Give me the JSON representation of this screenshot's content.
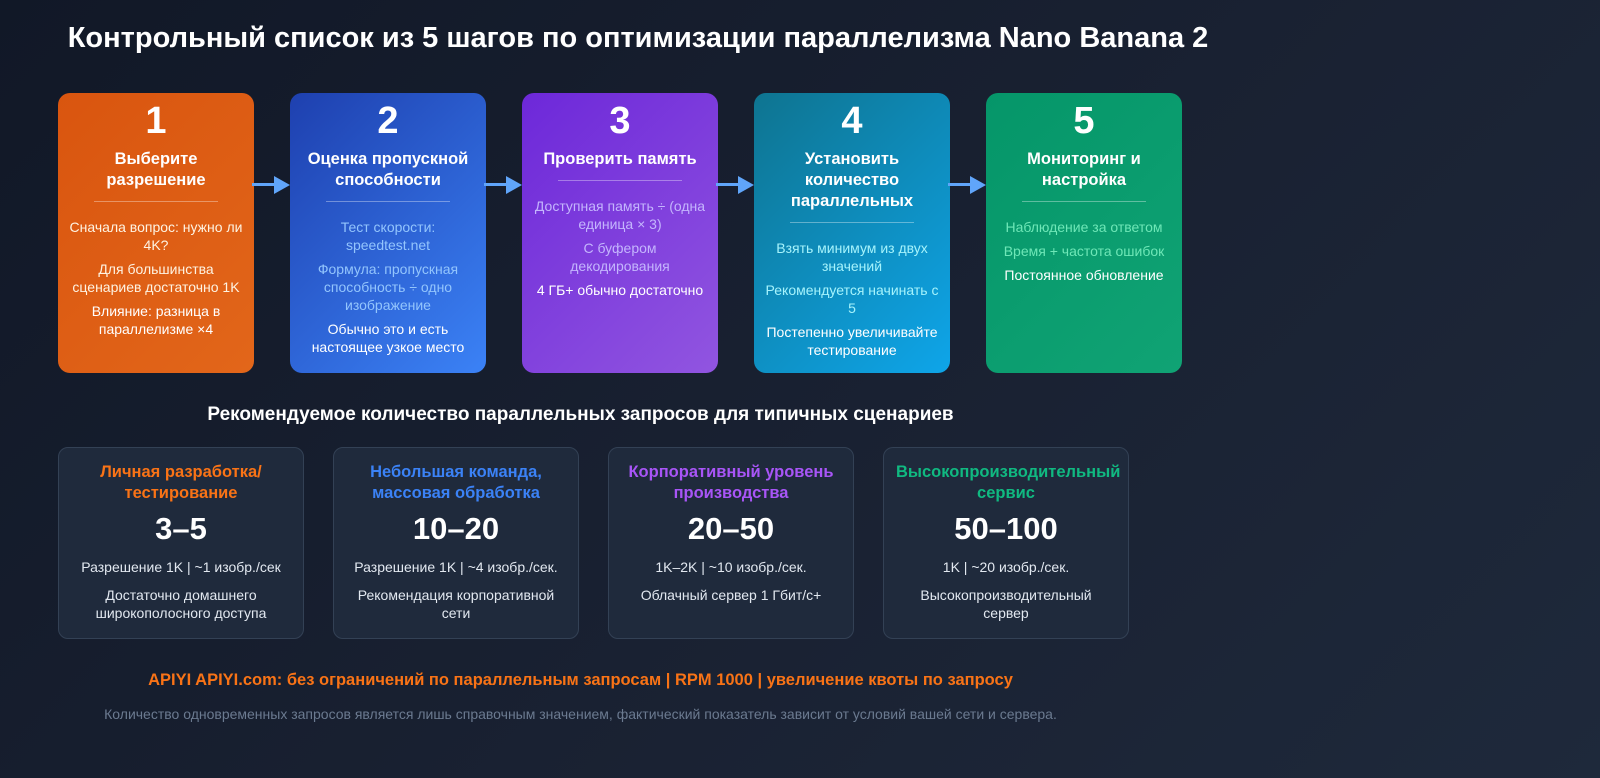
{
  "title": "Контрольный список из 5 шагов по оптимизации параллелизма Nano Banana 2",
  "steps": [
    {
      "num": "1",
      "title": "Выберите разрешение",
      "lines": [
        "Сначала вопрос: нужно ли 4K?",
        "Для большинства сценариев достаточно 1K",
        "Влияние: разница в параллелизме ×4"
      ],
      "colors": [
        "#fef3e2",
        "#fef3e2",
        "#ffffff"
      ],
      "bg": [
        "#d9550f",
        "#e2661a"
      ]
    },
    {
      "num": "2",
      "title": "Оценка пропускной способности",
      "lines": [
        "Тест скорости: speedtest.net",
        "Формула: пропускная способность ÷ одно изображение",
        "Обычно это и есть настоящее узкое место"
      ],
      "colors": [
        "#93c5fd",
        "#93c5fd",
        "#ffffff"
      ],
      "bg": [
        "#1e40af",
        "#3b82f6"
      ]
    },
    {
      "num": "3",
      "title": "Проверить память",
      "lines": [
        "Доступная память ÷ (одна единица × 3)",
        "С буфером декодирования",
        "4 ГБ+ обычно достаточно"
      ],
      "colors": [
        "#c4b5fd",
        "#c4b5fd",
        "#ffffff"
      ],
      "bg": [
        "#6d28d9",
        "#9155e0"
      ]
    },
    {
      "num": "4",
      "title": "Установить количество параллельных",
      "lines": [
        "Взять минимум из двух значений",
        "Рекомендуется начинать с 5",
        "Постепенно увеличивайте тестирование"
      ],
      "colors": [
        "#a5f3fc",
        "#a5f3fc",
        "#ffffff"
      ],
      "bg": [
        "#0e7490",
        "#0ea5e9"
      ]
    },
    {
      "num": "5",
      "title": "Мониторинг и настройка",
      "lines": [
        "Наблюдение за ответом",
        "Время + частота ошибок",
        "Постоянное обновление"
      ],
      "colors": [
        "#6ee7b7",
        "#6ee7b7",
        "#ffffff"
      ],
      "bg": [
        "#059669",
        "#10a374"
      ]
    }
  ],
  "subtitle": "Рекомендуемое количество параллельных запросов для типичных сценариев",
  "scenarios": [
    {
      "label": "Личная разработка/тестирование",
      "value": "3–5",
      "line1": "Разрешение 1K | ~1 изобр./сек",
      "line2": "Достаточно домашнего широкополосного доступа",
      "color": "#f97316"
    },
    {
      "label": "Небольшая команда, массовая обработка",
      "value": "10–20",
      "line1": "Разрешение 1K | ~4 изобр./сек.",
      "line2": "Рекомендация корпоративной сети",
      "color": "#3b82f6"
    },
    {
      "label": "Корпоративный уровень производства",
      "value": "20–50",
      "line1": "1K–2K | ~10 изобр./сек.",
      "line2": "Облачный сервер 1 Гбит/с+",
      "color": "#a855f7"
    },
    {
      "label": "Высокопроизводительный сервис",
      "value": "50–100",
      "line1": "1K | ~20 изобр./сек.",
      "line2": "Высокопроизводительный сервер",
      "color": "#10b981"
    }
  ],
  "footer": {
    "promo": "APIYI APIYI.com: без ограничений по параллельным запросам | RPM 1000 | увеличение квоты по запросу",
    "note": "Количество одновременных запросов является лишь справочным значением, фактический показатель зависит от условий вашей сети и сервера.",
    "promo_color": "#f97316"
  }
}
